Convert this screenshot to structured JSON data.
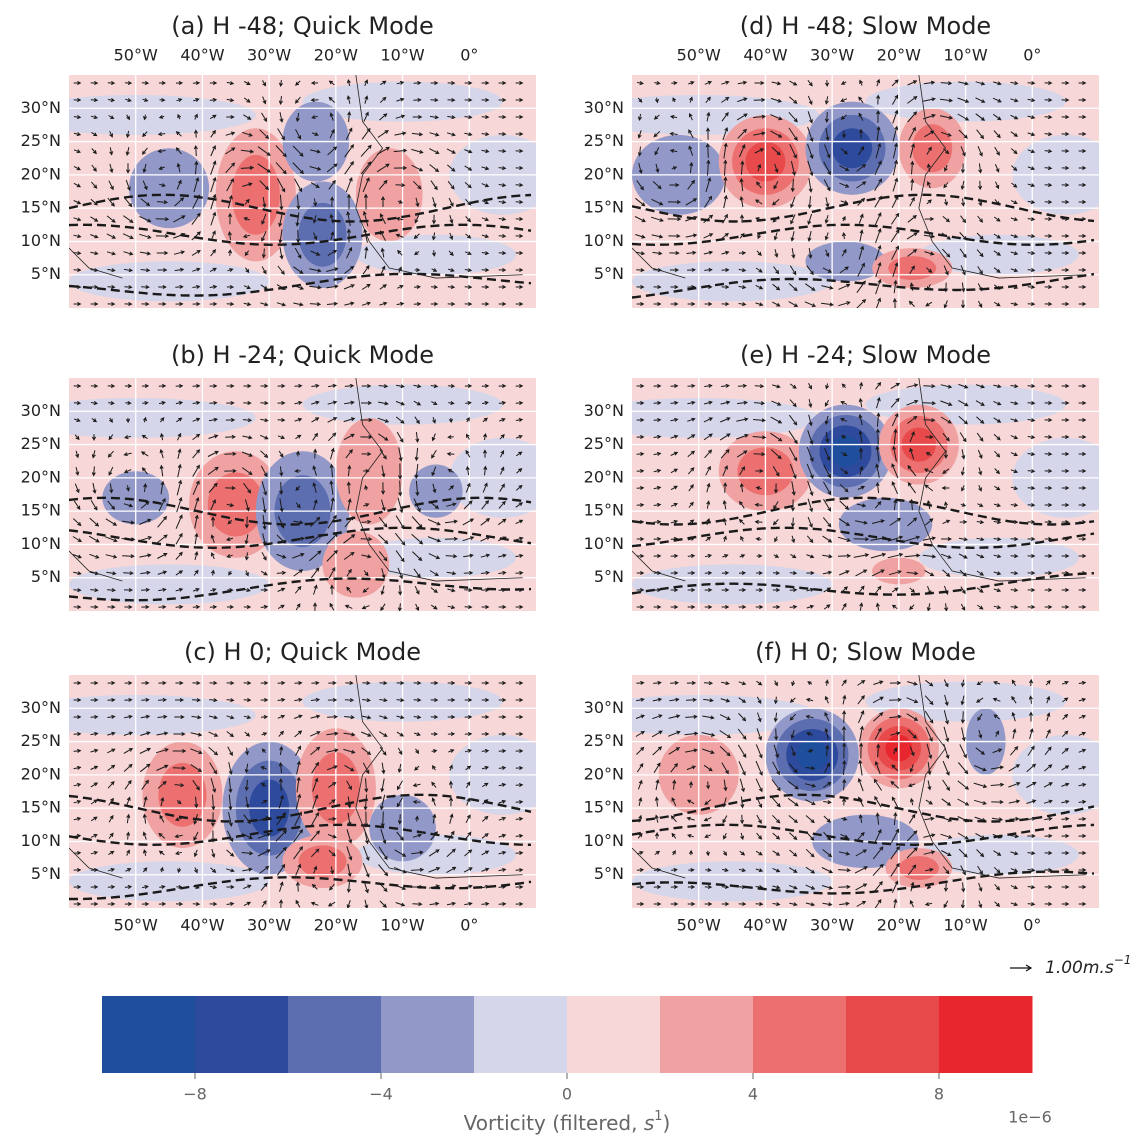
{
  "chart_data": [
    {
      "type": "map",
      "title": "(a) H -48; Quick Mode",
      "xlim": [
        -60,
        10
      ],
      "ylim": [
        0,
        35
      ],
      "xtick_labels": "top",
      "xticks": [
        {
          "value": -50,
          "label": "50°W"
        },
        {
          "value": -40,
          "label": "40°W"
        },
        {
          "value": -30,
          "label": "30°W"
        },
        {
          "value": -20,
          "label": "20°W"
        },
        {
          "value": -10,
          "label": "10°W"
        },
        {
          "value": 0,
          "label": "0°"
        }
      ],
      "yticks": [
        {
          "value": 5,
          "label": "5°N"
        },
        {
          "value": 10,
          "label": "10°N"
        },
        {
          "value": 15,
          "label": "15°N"
        },
        {
          "value": 20,
          "label": "20°N"
        },
        {
          "value": 25,
          "label": "25°N"
        },
        {
          "value": 30,
          "label": "30°N"
        }
      ],
      "grid": true
    },
    {
      "type": "map",
      "title": "(b) H -24; Quick Mode",
      "xlim": [
        -60,
        10
      ],
      "ylim": [
        0,
        35
      ],
      "xtick_labels": "none",
      "xticks": [
        {
          "value": -50,
          "label": "50°W"
        },
        {
          "value": -40,
          "label": "40°W"
        },
        {
          "value": -30,
          "label": "30°W"
        },
        {
          "value": -20,
          "label": "20°W"
        },
        {
          "value": -10,
          "label": "10°W"
        },
        {
          "value": 0,
          "label": "0°"
        }
      ],
      "yticks": [
        {
          "value": 5,
          "label": "5°N"
        },
        {
          "value": 10,
          "label": "10°N"
        },
        {
          "value": 15,
          "label": "15°N"
        },
        {
          "value": 20,
          "label": "20°N"
        },
        {
          "value": 25,
          "label": "25°N"
        },
        {
          "value": 30,
          "label": "30°N"
        }
      ],
      "grid": true
    },
    {
      "type": "map",
      "title": "(c) H 0; Quick Mode",
      "xlim": [
        -60,
        10
      ],
      "ylim": [
        0,
        35
      ],
      "xtick_labels": "bottom",
      "xticks": [
        {
          "value": -50,
          "label": "50°W"
        },
        {
          "value": -40,
          "label": "40°W"
        },
        {
          "value": -30,
          "label": "30°W"
        },
        {
          "value": -20,
          "label": "20°W"
        },
        {
          "value": -10,
          "label": "10°W"
        },
        {
          "value": 0,
          "label": "0°"
        }
      ],
      "yticks": [
        {
          "value": 5,
          "label": "5°N"
        },
        {
          "value": 10,
          "label": "10°N"
        },
        {
          "value": 15,
          "label": "15°N"
        },
        {
          "value": 20,
          "label": "20°N"
        },
        {
          "value": 25,
          "label": "25°N"
        },
        {
          "value": 30,
          "label": "30°N"
        }
      ],
      "grid": true
    },
    {
      "type": "map",
      "title": "(d) H -48; Slow Mode",
      "xlim": [
        -60,
        10
      ],
      "ylim": [
        0,
        35
      ],
      "xtick_labels": "top",
      "xticks": [
        {
          "value": -50,
          "label": "50°W"
        },
        {
          "value": -40,
          "label": "40°W"
        },
        {
          "value": -30,
          "label": "30°W"
        },
        {
          "value": -20,
          "label": "20°W"
        },
        {
          "value": -10,
          "label": "10°W"
        },
        {
          "value": 0,
          "label": "0°"
        }
      ],
      "yticks": [
        {
          "value": 5,
          "label": "5°N"
        },
        {
          "value": 10,
          "label": "10°N"
        },
        {
          "value": 15,
          "label": "15°N"
        },
        {
          "value": 20,
          "label": "20°N"
        },
        {
          "value": 25,
          "label": "25°N"
        },
        {
          "value": 30,
          "label": "30°N"
        }
      ],
      "grid": true
    },
    {
      "type": "map",
      "title": "(e) H -24; Slow Mode",
      "xlim": [
        -60,
        10
      ],
      "ylim": [
        0,
        35
      ],
      "xtick_labels": "none",
      "xticks": [
        {
          "value": -50,
          "label": "50°W"
        },
        {
          "value": -40,
          "label": "40°W"
        },
        {
          "value": -30,
          "label": "30°W"
        },
        {
          "value": -20,
          "label": "20°W"
        },
        {
          "value": -10,
          "label": "10°W"
        },
        {
          "value": 0,
          "label": "0°"
        }
      ],
      "yticks": [
        {
          "value": 5,
          "label": "5°N"
        },
        {
          "value": 10,
          "label": "10°N"
        },
        {
          "value": 15,
          "label": "15°N"
        },
        {
          "value": 20,
          "label": "20°N"
        },
        {
          "value": 25,
          "label": "25°N"
        },
        {
          "value": 30,
          "label": "30°N"
        }
      ],
      "grid": true
    },
    {
      "type": "map",
      "title": "(f) H 0; Slow Mode",
      "xlim": [
        -60,
        10
      ],
      "ylim": [
        0,
        35
      ],
      "xtick_labels": "bottom",
      "xticks": [
        {
          "value": -50,
          "label": "50°W"
        },
        {
          "value": -40,
          "label": "40°W"
        },
        {
          "value": -30,
          "label": "30°W"
        },
        {
          "value": -20,
          "label": "20°W"
        },
        {
          "value": -10,
          "label": "10°W"
        },
        {
          "value": 0,
          "label": "0°"
        }
      ],
      "yticks": [
        {
          "value": 5,
          "label": "5°N"
        },
        {
          "value": 10,
          "label": "10°N"
        },
        {
          "value": 15,
          "label": "15°N"
        },
        {
          "value": 20,
          "label": "20°N"
        },
        {
          "value": 25,
          "label": "25°N"
        },
        {
          "value": 30,
          "label": "30°N"
        }
      ],
      "grid": true
    },
    {
      "type": "colorbar",
      "label_parts": [
        "Vorticity (filtered, ",
        "s",
        "1",
        ")"
      ],
      "offset_text": "1e−6",
      "xlim": [
        -10,
        10
      ],
      "levels": [
        -10,
        -8,
        -6,
        -4,
        -2,
        0,
        2,
        4,
        6,
        8,
        10
      ],
      "colors": [
        "#1f4e9c",
        "#2d4a9d",
        "#5c6db0",
        "#9299c9",
        "#d5d6ea",
        "#f7d7d7",
        "#f0a1a1",
        "#ec7070",
        "#e84a4b",
        "#e8262e"
      ],
      "xticks": [
        {
          "value": -8,
          "label": "−8"
        },
        {
          "value": -4,
          "label": "−4"
        },
        0,
        4,
        8
      ]
    }
  ],
  "quiver_key": {
    "label": "1.00m.s",
    "superscript": "−1"
  }
}
